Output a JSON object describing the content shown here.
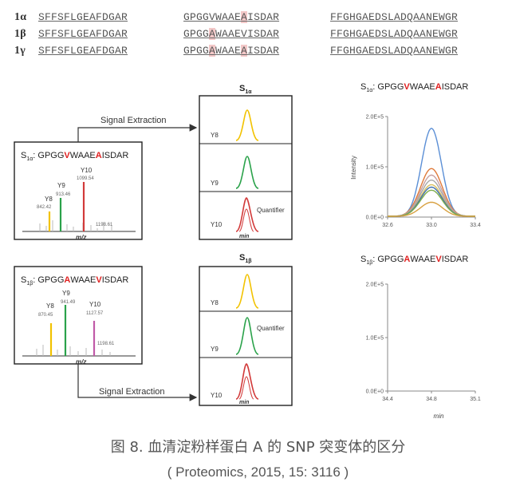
{
  "sequences": [
    {
      "label": "1α",
      "c1": "SFFSFLGEAFDGAR",
      "c2_pre": "GPGG",
      "c2_v1": "V",
      "c2_mid": "WAAE",
      "c2_v2": "A",
      "c2_post": "ISDAR",
      "c3": "FFGHGAEDSLADQAANEWGR"
    },
    {
      "label": "1β",
      "c1": "SFFSFLGEAFDGAR",
      "c2_pre": "GPGG",
      "c2_v1": "A",
      "c2_mid": "WAAE",
      "c2_v2": "V",
      "c2_post": "ISDAR",
      "c3": "FFGHGAEDSLADQAANEWGR"
    },
    {
      "label": "1γ",
      "c1": "SFFSFLGEAFDGAR",
      "c2_pre": "GPGG",
      "c2_v1": "A",
      "c2_mid": "WAAE",
      "c2_v2": "A",
      "c2_post": "ISDAR",
      "c3": "FFGHGAEDSLADQAANEWGR"
    }
  ],
  "panel_top": {
    "spectrum_title": {
      "prefix": "S",
      "sub": "1α",
      "pre": ": GPGG",
      "v1": "V",
      "mid": "WAAE",
      "v2": "A",
      "post": "ISDAR"
    },
    "peaks": [
      {
        "ion": "Y8",
        "mz": "842.42",
        "color": "#f2c200"
      },
      {
        "ion": "Y9",
        "mz": "913.46",
        "color": "#2aa24a"
      },
      {
        "ion": "Y10",
        "mz": "1099.54",
        "color": "#d23a3a"
      }
    ],
    "precursor": "1198.61",
    "xlabel": "m/z",
    "extraction_label": "Signal Extraction",
    "xic_title": {
      "prefix": "S",
      "sub": "1α"
    },
    "xic_traces": [
      {
        "ion": "Y8",
        "color": "#f2c200"
      },
      {
        "ion": "Y9",
        "color": "#2aa24a"
      },
      {
        "ion": "Y10",
        "color": "#d23a3a"
      }
    ],
    "quantifier": "Quantifier",
    "xic_xlabel": "min"
  },
  "panel_bottom": {
    "spectrum_title": {
      "prefix": "S",
      "sub": "1β",
      "pre": ": GPGG",
      "v1": "A",
      "mid": "WAAE",
      "v2": "V",
      "post": "ISDAR"
    },
    "peaks": [
      {
        "ion": "Y8",
        "mz": "870.45",
        "color": "#f2c200"
      },
      {
        "ion": "Y9",
        "mz": "941.49",
        "color": "#2aa24a"
      },
      {
        "ion": "Y10",
        "mz": "1127.57",
        "color": "#c05aa8"
      }
    ],
    "precursor": "1198.61",
    "xlabel": "m/z",
    "extraction_label": "Signal Extraction",
    "xic_title": {
      "prefix": "S",
      "sub": "1β"
    },
    "xic_traces": [
      {
        "ion": "Y8",
        "color": "#f2c200"
      },
      {
        "ion": "Y9",
        "color": "#2aa24a"
      },
      {
        "ion": "Y10",
        "color": "#d23a3a"
      }
    ],
    "quantifier": "Quantifier",
    "xic_xlabel": "min"
  },
  "chart_data": [
    {
      "type": "line",
      "title_parts": {
        "prefix": "S",
        "sub": "1α",
        "pre": ": GPGG",
        "v1": "V",
        "mid": "WAAE",
        "v2": "A",
        "post": "ISDAR"
      },
      "ylabel": "Intensity",
      "xlabel": "",
      "y_ticks": [
        "0.0E+0",
        "1.0E+5",
        "2.0E+5"
      ],
      "x_ticks": [
        "32.6",
        "33.0",
        "33.4"
      ],
      "xlim": [
        32.6,
        33.4
      ],
      "ylim": [
        0,
        200000
      ],
      "series": [
        {
          "color": "#5b8fd6",
          "apex": 33.0,
          "height": 175000,
          "width": 0.09
        },
        {
          "color": "#e07a3a",
          "apex": 33.0,
          "height": 95000,
          "width": 0.1
        },
        {
          "color": "#c8a0a0",
          "apex": 33.0,
          "height": 82000,
          "width": 0.1
        },
        {
          "color": "#a7a7a7",
          "apex": 33.0,
          "height": 72000,
          "width": 0.1
        },
        {
          "color": "#d8c060",
          "apex": 33.0,
          "height": 63000,
          "width": 0.1
        },
        {
          "color": "#3d6fb0",
          "apex": 33.0,
          "height": 58000,
          "width": 0.1
        },
        {
          "color": "#7fae4c",
          "apex": 33.0,
          "height": 52000,
          "width": 0.1
        },
        {
          "color": "#d8a040",
          "apex": 33.0,
          "height": 28000,
          "width": 0.1
        }
      ]
    },
    {
      "type": "line",
      "title_parts": {
        "prefix": "S",
        "sub": "1β",
        "pre": ": GPGG",
        "v1": "A",
        "mid": "WAAE",
        "v2": "V",
        "post": "ISDAR"
      },
      "ylabel": "",
      "xlabel": "min",
      "y_ticks": [
        "0.0E+0",
        "1.0E+5",
        "2.0E+5"
      ],
      "x_ticks": [
        "34.4",
        "34.8",
        "35.1"
      ],
      "xlim": [
        34.4,
        35.1
      ],
      "ylim": [
        0,
        200000
      ],
      "series": []
    }
  ],
  "caption": {
    "title": "图 8. 血清淀粉样蛋白 A 的 SNP 突变体的区分",
    "source": "( Proteomics, 2015, 15: 3116 )"
  },
  "colors": {
    "variant_red": "#e02020",
    "highlight": "#f3c8c8",
    "box": "#222222"
  }
}
